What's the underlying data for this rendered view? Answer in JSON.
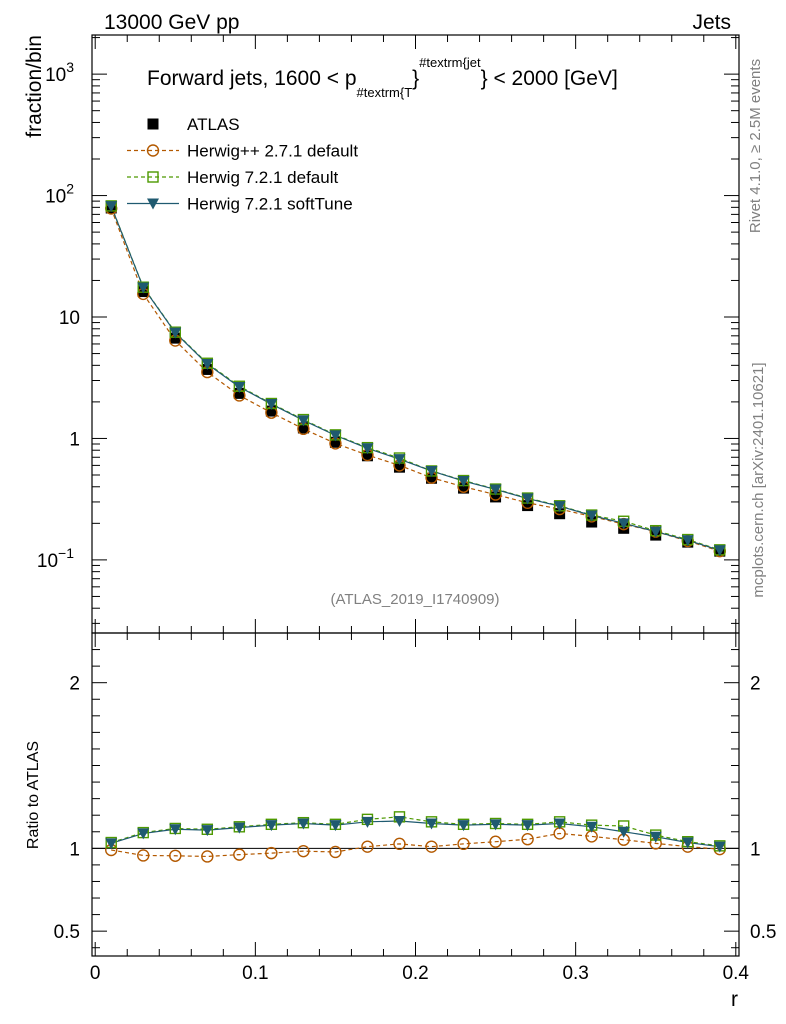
{
  "header": {
    "left": "13000 GeV pp",
    "right": "Jets"
  },
  "side_texts": {
    "rivet": "Rivet 4.1.0, ≥ 2.5M events",
    "mcplots": "mcplots.cern.ch [arXiv:2401.10621]"
  },
  "chart_data": {
    "type": "line",
    "title_parts": {
      "a": "Forward jets, 1600 < p",
      "sub": "#textrm{T",
      "brace": "}",
      "sup": "#textrm{jet",
      "b": "} < 2000 [GeV]"
    },
    "analysis_label": "(ATLAS_2019_I1740909)",
    "xlabel": "r",
    "ylabel": "fraction/bin",
    "ratio_ylabel": "Ratio to ATLAS",
    "xlim": [
      -0.002,
      0.402
    ],
    "ylim_log": [
      0.025,
      2100
    ],
    "ratio_ylim": [
      0.35,
      2.3
    ],
    "x_tick_labels": [
      "0",
      "0.1",
      "0.2",
      "0.3",
      "0.4"
    ],
    "x_tick_values": [
      0,
      0.1,
      0.2,
      0.3,
      0.4
    ],
    "y_tick_labels": [
      {
        "value": 1000,
        "base": "10",
        "exp": "3"
      },
      {
        "value": 100,
        "base": "10",
        "exp": "2"
      },
      {
        "value": 10,
        "base": "10",
        "exp": ""
      },
      {
        "value": 1,
        "base": "1",
        "exp": ""
      },
      {
        "value": 0.1,
        "base": "10",
        "exp": "−1"
      }
    ],
    "ratio_tick_labels": [
      {
        "value": 2,
        "label": "2"
      },
      {
        "value": 1,
        "label": "1"
      },
      {
        "value": 0.5,
        "label": "0.5"
      }
    ],
    "x": [
      0.01,
      0.03,
      0.05,
      0.07,
      0.09,
      0.11,
      0.13,
      0.15,
      0.17,
      0.19,
      0.21,
      0.23,
      0.25,
      0.27,
      0.29,
      0.31,
      0.33,
      0.35,
      0.37,
      0.39
    ],
    "series": [
      {
        "name": "ATLAS",
        "style": "data",
        "color": "#000000",
        "values": [
          79,
          16.2,
          6.7,
          3.7,
          2.35,
          1.68,
          1.22,
          0.93,
          0.72,
          0.58,
          0.47,
          0.39,
          0.33,
          0.28,
          0.24,
          0.205,
          0.182,
          0.16,
          0.14,
          0.118
        ]
      },
      {
        "name": "Herwig++ 2.7.1 default",
        "style": "circle-dashed",
        "color": "#b35900",
        "values": [
          78.2,
          15.5,
          6.4,
          3.52,
          2.26,
          1.63,
          1.2,
          0.91,
          0.73,
          0.6,
          0.475,
          0.4,
          0.345,
          0.295,
          0.262,
          0.228,
          0.197,
          0.171,
          0.143,
          0.118
        ],
        "ratio": [
          0.99,
          0.957,
          0.955,
          0.951,
          0.962,
          0.971,
          0.983,
          0.978,
          1.01,
          1.027,
          1.01,
          1.027,
          1.04,
          1.055,
          1.09,
          1.072,
          1.052,
          1.03,
          1.01,
          0.995
        ]
      },
      {
        "name": "Herwig 7.2.1 default",
        "style": "square-dashed",
        "color": "#4d9900",
        "values": [
          82.2,
          17.6,
          7.5,
          4.16,
          2.69,
          1.94,
          1.43,
          1.07,
          0.84,
          0.69,
          0.54,
          0.45,
          0.383,
          0.323,
          0.279,
          0.234,
          0.208,
          0.174,
          0.147,
          0.121
        ],
        "ratio": [
          1.035,
          1.095,
          1.12,
          1.115,
          1.13,
          1.145,
          1.155,
          1.145,
          1.175,
          1.19,
          1.16,
          1.145,
          1.15,
          1.145,
          1.16,
          1.14,
          1.135,
          1.08,
          1.04,
          1.015
        ]
      },
      {
        "name": "Herwig 7.2.1 softTune",
        "style": "triangle-solid",
        "color": "#1f5a70",
        "values": [
          81.8,
          17.5,
          7.43,
          4.1,
          2.65,
          1.92,
          1.41,
          1.06,
          0.83,
          0.675,
          0.54,
          0.446,
          0.38,
          0.32,
          0.277,
          0.232,
          0.2,
          0.171,
          0.145,
          0.12
        ],
        "ratio": [
          1.03,
          1.09,
          1.115,
          1.11,
          1.125,
          1.14,
          1.15,
          1.14,
          1.16,
          1.165,
          1.15,
          1.14,
          1.145,
          1.14,
          1.15,
          1.13,
          1.1,
          1.07,
          1.035,
          1.01
        ]
      }
    ]
  }
}
